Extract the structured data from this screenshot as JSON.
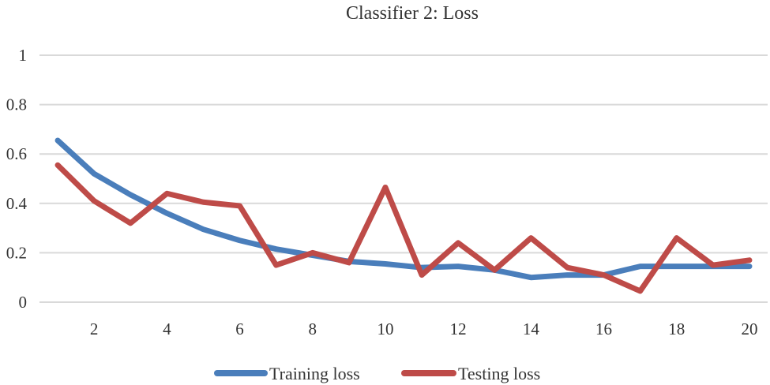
{
  "chart_data": {
    "type": "line",
    "title": "Classifier 2: Loss",
    "xlabel": "",
    "ylabel": "",
    "x": [
      1,
      2,
      3,
      4,
      5,
      6,
      7,
      8,
      9,
      10,
      11,
      12,
      13,
      14,
      15,
      16,
      17,
      18,
      19,
      20
    ],
    "x_tick_labels": [
      "2",
      "4",
      "6",
      "8",
      "10",
      "12",
      "14",
      "16",
      "18",
      "20"
    ],
    "x_tick_values": [
      2,
      4,
      6,
      8,
      10,
      12,
      14,
      16,
      18,
      20
    ],
    "y_tick_labels": [
      "0",
      "0.2",
      "0.4",
      "0.6",
      "0.8",
      "1"
    ],
    "y_tick_values": [
      0,
      0.2,
      0.4,
      0.6,
      0.8,
      1
    ],
    "ylim": [
      0,
      1
    ],
    "grid": "horizontal",
    "legend_position": "bottom",
    "series": [
      {
        "name": "Training loss",
        "color": "#4a7ebb",
        "values": [
          0.655,
          0.52,
          0.435,
          0.36,
          0.295,
          0.25,
          0.215,
          0.19,
          0.165,
          0.155,
          0.14,
          0.145,
          0.13,
          0.1,
          0.11,
          0.11,
          0.145,
          0.145,
          0.145,
          0.145
        ]
      },
      {
        "name": "Testing loss",
        "color": "#be4b48",
        "values": [
          0.555,
          0.41,
          0.32,
          0.44,
          0.405,
          0.39,
          0.15,
          0.2,
          0.16,
          0.465,
          0.11,
          0.24,
          0.13,
          0.26,
          0.14,
          0.11,
          0.045,
          0.26,
          0.15,
          0.17
        ]
      }
    ]
  }
}
